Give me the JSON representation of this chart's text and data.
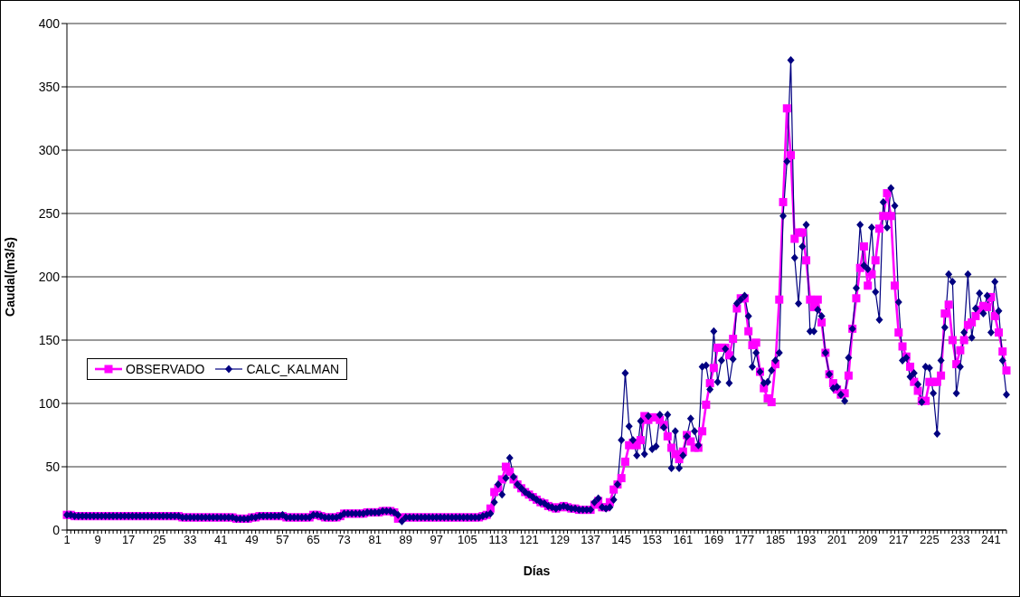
{
  "chart_data": {
    "type": "line",
    "xlabel": "Días",
    "ylabel": "Caudal(m3/s)",
    "categories": [
      "1",
      null,
      null,
      null,
      null,
      null,
      null,
      null,
      "9",
      null,
      null,
      null,
      null,
      null,
      null,
      null,
      "17",
      null,
      null,
      null,
      null,
      null,
      null,
      null,
      "25",
      null,
      null,
      null,
      null,
      null,
      null,
      null,
      "33",
      null,
      null,
      null,
      null,
      null,
      null,
      null,
      "41",
      null,
      null,
      null,
      null,
      null,
      null,
      null,
      "49",
      null,
      null,
      null,
      null,
      null,
      null,
      null,
      "57",
      null,
      null,
      null,
      null,
      null,
      null,
      null,
      "65",
      null,
      null,
      null,
      null,
      null,
      null,
      null,
      "73",
      null,
      null,
      null,
      null,
      null,
      null,
      null,
      "81",
      null,
      null,
      null,
      null,
      null,
      null,
      null,
      "89",
      null,
      null,
      null,
      null,
      null,
      null,
      null,
      "97",
      null,
      null,
      null,
      null,
      null,
      null,
      null,
      "105",
      null,
      null,
      null,
      null,
      null,
      null,
      null,
      "113",
      null,
      null,
      null,
      null,
      null,
      null,
      null,
      "121",
      null,
      null,
      null,
      null,
      null,
      null,
      null,
      "129",
      null,
      null,
      null,
      null,
      null,
      null,
      null,
      "137",
      null,
      null,
      null,
      null,
      null,
      null,
      null,
      "145",
      null,
      null,
      null,
      null,
      null,
      null,
      null,
      "153",
      null,
      null,
      null,
      null,
      null,
      null,
      null,
      "161",
      null,
      null,
      null,
      null,
      null,
      null,
      null,
      "169",
      null,
      null,
      null,
      null,
      null,
      null,
      null,
      "177",
      null,
      null,
      null,
      null,
      null,
      null,
      null,
      "185",
      null,
      null,
      null,
      null,
      null,
      null,
      null,
      "193",
      null,
      null,
      null,
      null,
      null,
      null,
      null,
      "201",
      null,
      null,
      null,
      null,
      null,
      null,
      null,
      "209",
      null,
      null,
      null,
      null,
      null,
      null,
      null,
      "217",
      null,
      null,
      null,
      null,
      null,
      null,
      null,
      "225",
      null,
      null,
      null,
      null,
      null,
      null,
      null,
      "233",
      null,
      null,
      null,
      null,
      null,
      null,
      null,
      "241",
      null,
      null,
      null,
      null
    ],
    "series": [
      {
        "name": "OBSERVADO",
        "color": "#ff00ff",
        "marker": "square",
        "values": [
          12,
          12,
          11,
          11,
          11,
          11,
          11,
          11,
          11,
          11,
          11,
          11,
          11,
          11,
          11,
          11,
          11,
          11,
          11,
          11,
          11,
          11,
          11,
          11,
          11,
          11,
          11,
          11,
          11,
          11,
          10,
          10,
          10,
          10,
          10,
          10,
          10,
          10,
          10,
          10,
          10,
          10,
          10,
          10,
          9,
          9,
          9,
          9,
          10,
          10,
          11,
          11,
          11,
          11,
          11,
          11,
          11,
          10,
          10,
          10,
          10,
          10,
          10,
          10,
          12,
          12,
          11,
          10,
          10,
          10,
          10,
          11,
          13,
          13,
          13,
          13,
          13,
          13,
          14,
          14,
          14,
          14,
          15,
          15,
          15,
          14,
          9,
          10,
          10,
          10,
          10,
          10,
          10,
          10,
          10,
          10,
          10,
          10,
          10,
          10,
          10,
          10,
          10,
          10,
          10,
          10,
          10,
          10,
          11,
          12,
          17,
          30,
          33,
          40,
          50,
          46,
          40,
          36,
          33,
          30,
          28,
          26,
          24,
          22,
          21,
          19,
          18,
          17,
          18,
          19,
          18,
          17,
          17,
          16,
          16,
          16,
          16,
          20,
          23,
          18,
          18,
          22,
          32,
          36,
          41,
          54,
          67,
          69,
          67,
          71,
          90,
          87,
          89,
          89,
          87,
          83,
          74,
          65,
          60,
          56,
          62,
          75,
          70,
          65,
          65,
          78,
          99,
          116,
          128,
          144,
          144,
          144,
          138,
          151,
          175,
          183,
          183,
          157,
          146,
          148,
          125,
          112,
          104,
          101,
          131,
          182,
          259,
          333,
          296,
          230,
          235,
          235,
          213,
          182,
          176,
          182,
          164,
          140,
          123,
          116,
          111,
          107,
          108,
          122,
          159,
          183,
          207,
          224,
          193,
          202,
          213,
          238,
          248,
          266,
          248,
          193,
          156,
          145,
          137,
          129,
          117,
          110,
          102,
          102,
          117,
          117,
          117,
          122,
          171,
          178,
          150,
          131,
          142,
          150,
          162,
          164,
          169,
          174,
          177,
          176,
          184,
          169,
          156,
          141,
          126
        ]
      },
      {
        "name": "CALC_KALMAN",
        "color": "#000080",
        "marker": "diamond",
        "values": [
          12,
          12,
          11,
          11,
          11,
          11,
          11,
          11,
          11,
          11,
          11,
          11,
          11,
          11,
          11,
          11,
          11,
          11,
          11,
          11,
          11,
          11,
          11,
          11,
          11,
          11,
          11,
          11,
          11,
          11,
          10,
          10,
          10,
          10,
          10,
          10,
          10,
          10,
          10,
          10,
          10,
          10,
          10,
          10,
          9,
          9,
          9,
          9,
          10,
          10,
          11,
          11,
          11,
          11,
          11,
          11,
          12,
          10,
          10,
          10,
          10,
          10,
          10,
          10,
          12,
          12,
          11,
          10,
          10,
          10,
          10,
          11,
          13,
          13,
          13,
          13,
          13,
          13,
          14,
          14,
          14,
          14,
          15,
          15,
          15,
          14,
          12,
          7,
          10,
          10,
          10,
          10,
          10,
          10,
          10,
          10,
          10,
          10,
          10,
          10,
          10,
          10,
          10,
          10,
          10,
          10,
          10,
          10,
          11,
          12,
          13,
          22,
          36,
          28,
          41,
          57,
          42,
          36,
          33,
          30,
          28,
          26,
          24,
          22,
          21,
          19,
          18,
          17,
          18,
          19,
          18,
          17,
          17,
          16,
          16,
          16,
          16,
          22,
          25,
          18,
          17,
          18,
          24,
          36,
          71,
          124,
          82,
          71,
          59,
          86,
          60,
          90,
          64,
          66,
          91,
          81,
          91,
          49,
          78,
          49,
          59,
          74,
          88,
          78,
          67,
          129,
          130,
          111,
          157,
          117,
          134,
          143,
          116,
          135,
          179,
          182,
          185,
          169,
          129,
          140,
          125,
          116,
          117,
          126,
          134,
          140,
          248,
          291,
          371,
          215,
          179,
          224,
          241,
          157,
          157,
          174,
          169,
          140,
          123,
          112,
          113,
          107,
          102,
          136,
          159,
          191,
          241,
          209,
          206,
          239,
          188,
          166,
          259,
          239,
          270,
          256,
          180,
          134,
          136,
          121,
          124,
          115,
          101,
          129,
          128,
          108,
          76,
          134,
          160,
          202,
          196,
          108,
          129,
          156,
          202,
          152,
          175,
          187,
          171,
          185,
          156,
          196,
          173,
          134,
          107
        ]
      }
    ],
    "ylim": [
      0,
      400
    ],
    "yticks": [
      0,
      50,
      100,
      150,
      200,
      250,
      300,
      350,
      400
    ],
    "grid": "y",
    "legend": "left"
  }
}
